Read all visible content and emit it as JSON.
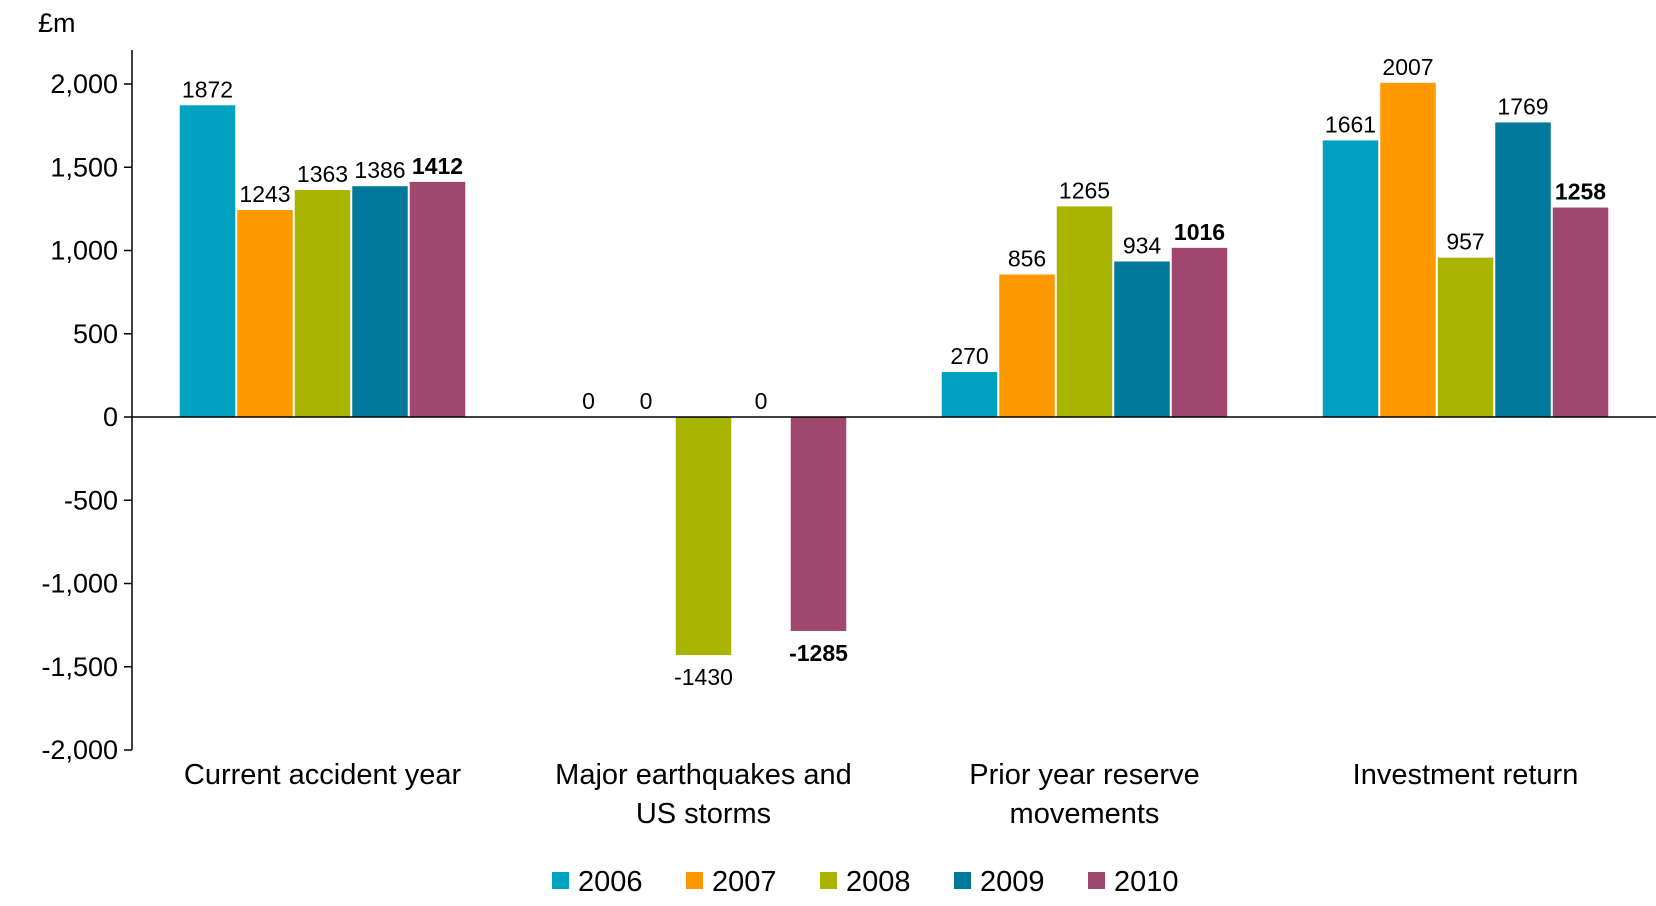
{
  "chart_data": {
    "type": "bar",
    "title": "",
    "unit_label": "£m",
    "categories": [
      [
        "Current accident year"
      ],
      [
        "Major earthquakes and",
        "US storms"
      ],
      [
        "Prior year reserve",
        "movements"
      ],
      [
        "Investment return"
      ]
    ],
    "series": [
      {
        "name": "2006",
        "color": "#00A0C0",
        "values": [
          1872,
          0,
          270,
          1661
        ],
        "labels": [
          "1872",
          "0",
          "270",
          "1661"
        ],
        "bold": false
      },
      {
        "name": "2007",
        "color": "#FF9900",
        "values": [
          1243,
          0,
          856,
          2007
        ],
        "labels": [
          "1243",
          "0",
          "856",
          "2007"
        ],
        "bold": false
      },
      {
        "name": "2008",
        "color": "#A8B400",
        "values": [
          1363,
          -1430,
          1265,
          957
        ],
        "labels": [
          "1363",
          "-1430",
          "1265",
          "957"
        ],
        "bold": false
      },
      {
        "name": "2009",
        "color": "#00799A",
        "values": [
          1386,
          0,
          934,
          1769
        ],
        "labels": [
          "1386",
          "0",
          "934",
          "1769"
        ],
        "bold": false
      },
      {
        "name": "2010",
        "color": "#A0476F",
        "values": [
          1412,
          -1285,
          1016,
          1258
        ],
        "labels": [
          "1412",
          "-1285",
          "1016",
          "1258"
        ],
        "bold": true
      }
    ],
    "ylim": [
      -2000,
      2000
    ],
    "yticks": [
      {
        "value": 2000,
        "label": "2,000"
      },
      {
        "value": 1500,
        "label": "1,500"
      },
      {
        "value": 1000,
        "label": "1,000"
      },
      {
        "value": 500,
        "label": "500"
      },
      {
        "value": 0,
        "label": "0"
      },
      {
        "value": -500,
        "label": "-500"
      },
      {
        "value": -1000,
        "label": "-1,000"
      },
      {
        "value": -1500,
        "label": "-1,500"
      },
      {
        "value": -2000,
        "label": "-2,000"
      }
    ],
    "grid": false,
    "legend_position": "bottom"
  }
}
